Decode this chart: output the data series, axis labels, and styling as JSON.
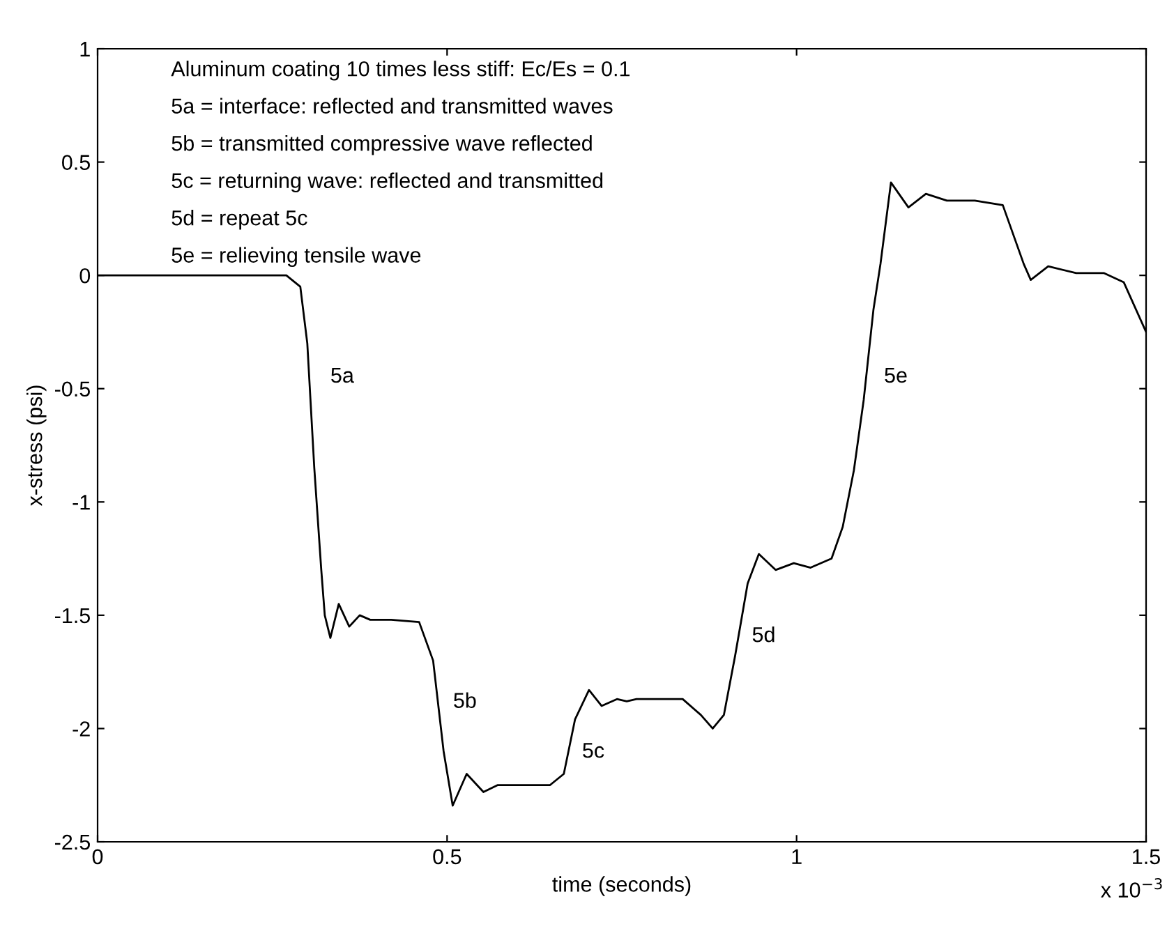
{
  "chart_data": {
    "type": "line",
    "xlabel": "time (seconds)",
    "ylabel": "x-stress (psi)",
    "xlim": [
      0,
      1.5
    ],
    "xticks": [
      0,
      0.5,
      1,
      1.5
    ],
    "ylim": [
      -2.5,
      1
    ],
    "yticks": [
      -2.5,
      -2,
      -1.5,
      -1,
      -0.5,
      0,
      0.5,
      1
    ],
    "grid": false,
    "marker": "none",
    "line_style": "solid",
    "series": [
      {
        "color": "#000000",
        "x": [
          0,
          0.1,
          0.2,
          0.27,
          0.29,
          0.3,
          0.31,
          0.32,
          0.325,
          0.333,
          0.345,
          0.36,
          0.375,
          0.39,
          0.42,
          0.46,
          0.48,
          0.495,
          0.508,
          0.528,
          0.552,
          0.572,
          0.6,
          0.647,
          0.667,
          0.683,
          0.703,
          0.721,
          0.743,
          0.757,
          0.771,
          0.8,
          0.837,
          0.863,
          0.88,
          0.896,
          0.912,
          0.93,
          0.946,
          0.97,
          0.996,
          1.02,
          1.05,
          1.066,
          1.082,
          1.096,
          1.11,
          1.12,
          1.135,
          1.16,
          1.185,
          1.215,
          1.255,
          1.295,
          1.325,
          1.335,
          1.36,
          1.4,
          1.44,
          1.468,
          1.5
        ],
        "values": [
          0,
          0,
          0,
          0,
          -0.05,
          -0.3,
          -0.85,
          -1.3,
          -1.5,
          -1.6,
          -1.45,
          -1.55,
          -1.5,
          -1.52,
          -1.52,
          -1.53,
          -1.7,
          -2.1,
          -2.34,
          -2.2,
          -2.28,
          -2.25,
          -2.25,
          -2.25,
          -2.2,
          -1.96,
          -1.83,
          -1.9,
          -1.87,
          -1.88,
          -1.87,
          -1.87,
          -1.87,
          -1.94,
          -2.0,
          -1.94,
          -1.68,
          -1.36,
          -1.23,
          -1.3,
          -1.27,
          -1.29,
          -1.25,
          -1.11,
          -0.86,
          -0.55,
          -0.15,
          0.05,
          0.41,
          0.3,
          0.36,
          0.33,
          0.33,
          0.31,
          0.05,
          -0.02,
          0.04,
          0.01,
          0.01,
          -0.03,
          -0.25
        ]
      }
    ],
    "annotations": [
      "Aluminum coating 10 times less stiff: Ec/Es = 0.1",
      "5a = interface: reflected and transmitted waves",
      "5b = transmitted compressive wave reflected",
      "5c = returning wave: reflected and transmitted",
      "5d = repeat 5c",
      "5e = relieving tensile wave",
      "5a",
      "5b",
      "5c",
      "5d",
      "5e",
      "x 10$^{−3}$"
    ]
  }
}
